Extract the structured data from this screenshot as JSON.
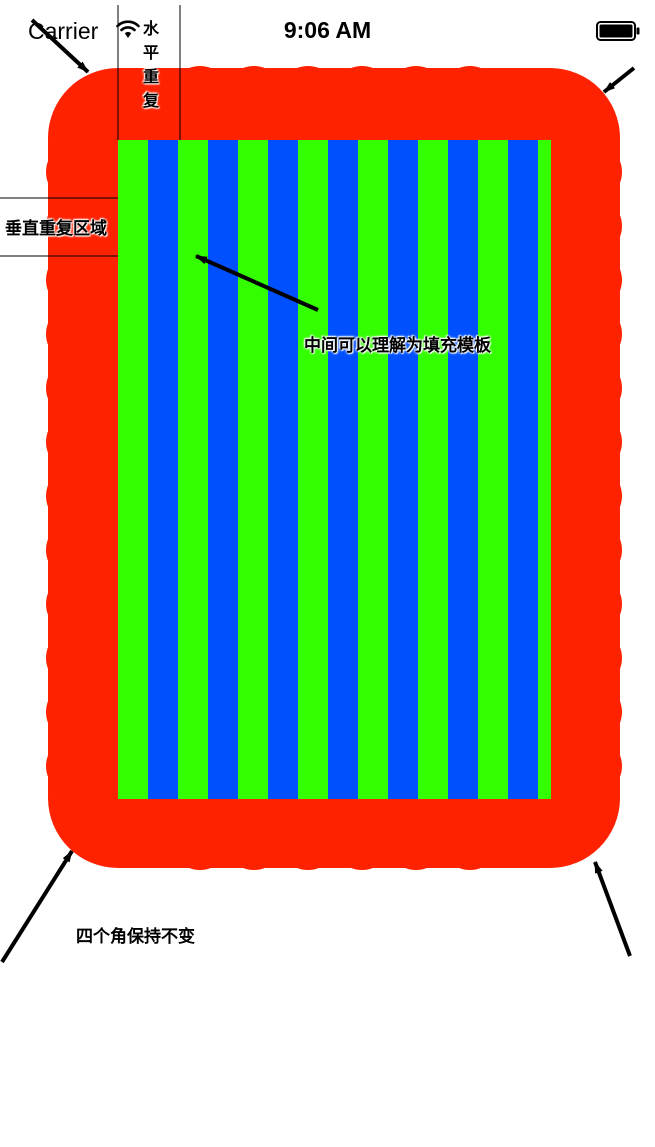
{
  "status_bar": {
    "carrier": "Carrier",
    "time": "9:06 AM"
  },
  "annotations": {
    "horizontal_repeat": "水平重复",
    "vertical_repeat_area": "垂直重复区域",
    "center_fill": "中间可以理解为填充模板",
    "corners_unchanged": "四个角保持不变"
  },
  "colors": {
    "border_red": "#ff2200",
    "stripe_green": "#33ff00",
    "stripe_blue": "#0050ff",
    "arrow_black": "#000000"
  },
  "icons": [
    "wifi-icon",
    "battery-icon",
    "arrow-icon"
  ]
}
